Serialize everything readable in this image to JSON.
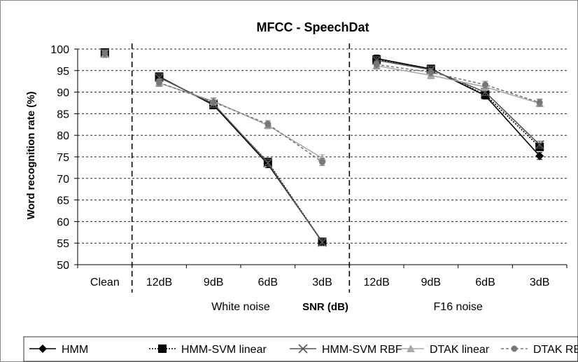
{
  "chart_data": {
    "type": "line",
    "title": "MFCC - SpeechDat",
    "xlabel": "SNR (dB)",
    "ylabel": "Word recognition rate (%)",
    "ylim": [
      50,
      100
    ],
    "yticks": [
      50,
      55,
      60,
      65,
      70,
      75,
      80,
      85,
      90,
      95,
      100
    ],
    "grid": true,
    "categories": [
      "Clean",
      "12dB",
      "9dB",
      "6dB",
      "3dB",
      "12dB",
      "9dB",
      "6dB",
      "3dB"
    ],
    "groups": [
      {
        "label": "White noise",
        "start": 1,
        "end": 4
      },
      {
        "label": "F16 noise",
        "start": 5,
        "end": 8
      }
    ],
    "legend_position": "bottom",
    "series": [
      {
        "name": "HMM",
        "color": "#000000",
        "dash": "solid",
        "marker": "diamond",
        "values": [
          99.2,
          93.6,
          87.0,
          73.3,
          55.3,
          97.8,
          95.4,
          89.2,
          75.2
        ]
      },
      {
        "name": "HMM-SVM linear",
        "color": "#000000",
        "dash": "dotted",
        "marker": "square",
        "values": [
          99.2,
          93.6,
          87.0,
          73.8,
          55.3,
          97.6,
          95.4,
          89.4,
          77.3
        ]
      },
      {
        "name": "HMM-SVM RBF",
        "color": "#555555",
        "dash": "solid",
        "marker": "x",
        "values": [
          99.0,
          93.4,
          87.3,
          73.6,
          55.2,
          97.4,
          95.2,
          90.0,
          77.8
        ]
      },
      {
        "name": "DTAK linear",
        "color": "#aaaaaa",
        "dash": "solid",
        "marker": "triangle",
        "values": [
          98.8,
          92.1,
          87.9,
          82.3,
          74.7,
          96.1,
          93.9,
          91.2,
          87.4
        ]
      },
      {
        "name": "DTAK RBF",
        "color": "#777777",
        "dash": "dashed",
        "marker": "circle",
        "values": [
          99.0,
          92.2,
          87.7,
          82.6,
          73.8,
          96.4,
          94.6,
          91.7,
          87.6
        ]
      }
    ]
  }
}
